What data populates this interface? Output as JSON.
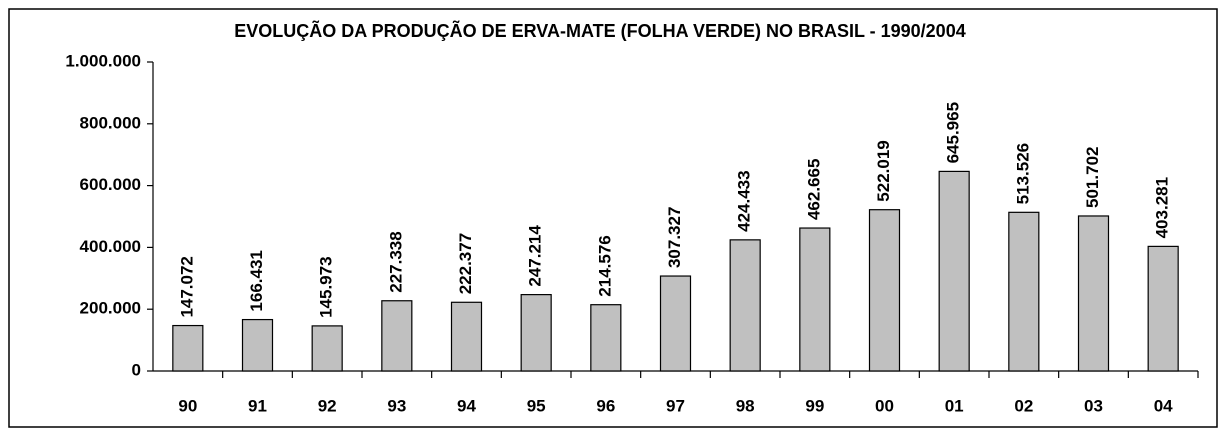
{
  "chart_data": {
    "type": "bar",
    "title": "EVOLUÇÃO DA PRODUÇÃO DE ERVA-MATE (FOLHA VERDE) NO BRASIL - 1990/2004",
    "categories": [
      "90",
      "91",
      "92",
      "93",
      "94",
      "95",
      "96",
      "97",
      "98",
      "99",
      "00",
      "01",
      "02",
      "03",
      "04"
    ],
    "values": [
      147072,
      166431,
      145973,
      227338,
      222377,
      247214,
      214576,
      307327,
      424433,
      462665,
      522019,
      645965,
      513526,
      501702,
      403281
    ],
    "value_labels": [
      "147.072",
      "166.431",
      "145.973",
      "227.338",
      "222.377",
      "247.214",
      "214.576",
      "307.327",
      "424.433",
      "462.665",
      "522.019",
      "645.965",
      "513.526",
      "501.702",
      "403.281"
    ],
    "color": "#c0c0c0",
    "ylim": [
      0,
      1000000
    ],
    "yticks": [
      0,
      {
        "value": 200000,
        "label": "200.000"
      },
      {
        "value": 400000,
        "label": "400.000"
      },
      {
        "value": 600000,
        "label": "600.000"
      },
      {
        "value": 800000,
        "label": "800.000"
      },
      {
        "value": 1000000,
        "label": "1.000.000"
      }
    ],
    "grid": false
  }
}
